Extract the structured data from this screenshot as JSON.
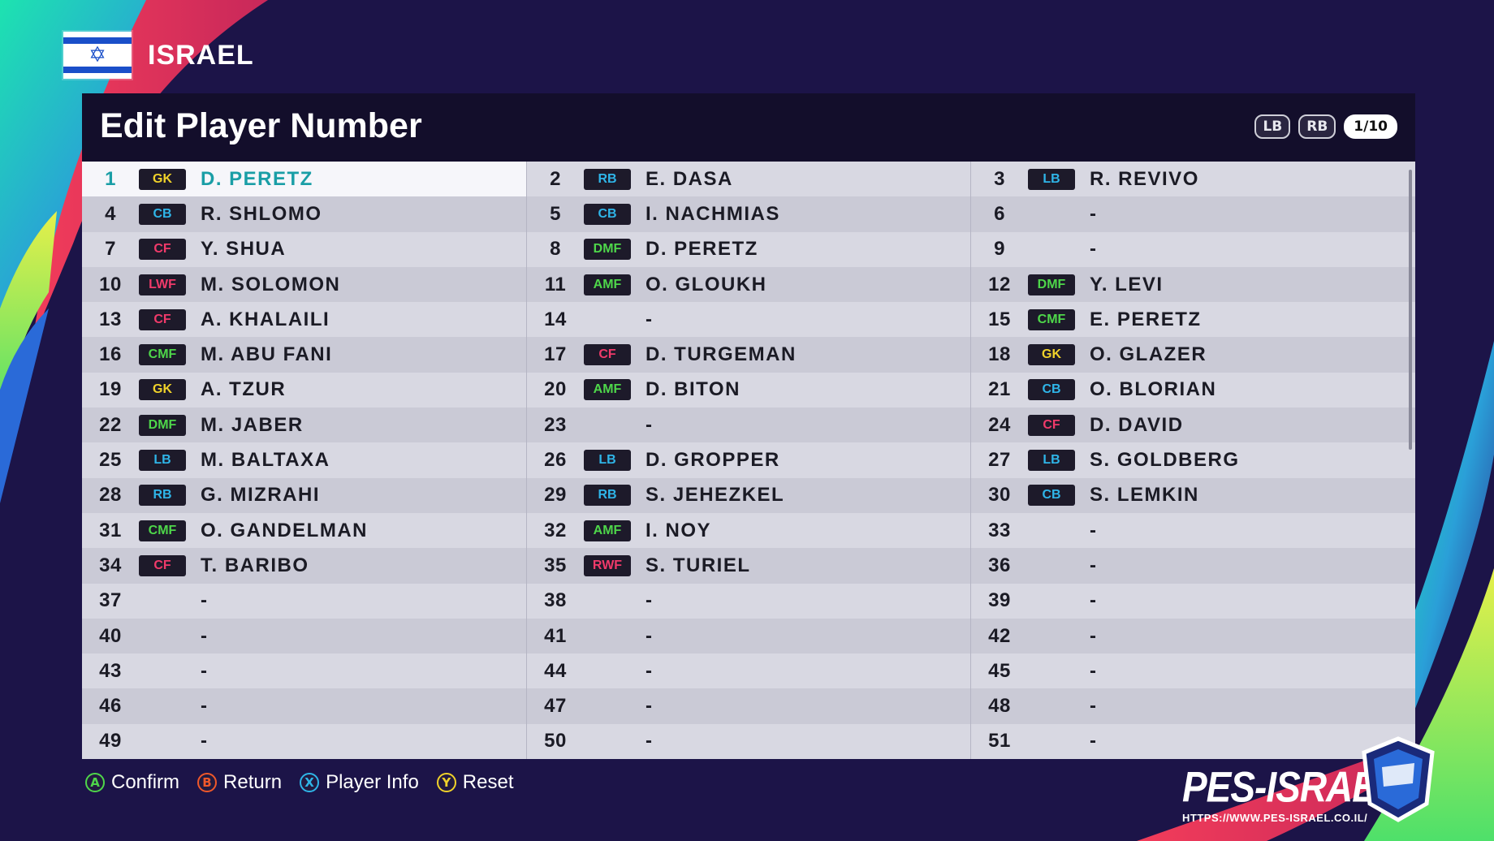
{
  "header": {
    "country": "ISRAEL"
  },
  "panel": {
    "title": "Edit Player Number",
    "paging": {
      "lb": "LB",
      "rb": "RB",
      "page": "1/10"
    }
  },
  "colors": {
    "GK": "#f0d22a",
    "CB": "#2fb5e8",
    "LB": "#2fb5e8",
    "RB": "#2fb5e8",
    "DMF": "#4ed64a",
    "CMF": "#4ed64a",
    "AMF": "#4ed64a",
    "CF": "#f03a6a",
    "LWF": "#f03a6a",
    "RWF": "#f03a6a"
  },
  "players": [
    {
      "n": "1",
      "p": "GK",
      "name": "D. PERETZ",
      "selected": true
    },
    {
      "n": "2",
      "p": "RB",
      "name": "E. DASA"
    },
    {
      "n": "3",
      "p": "LB",
      "name": "R. REVIVO"
    },
    {
      "n": "4",
      "p": "CB",
      "name": "R. SHLOMO"
    },
    {
      "n": "5",
      "p": "CB",
      "name": "I. NACHMIAS"
    },
    {
      "n": "6",
      "p": "",
      "name": "-"
    },
    {
      "n": "7",
      "p": "CF",
      "name": "Y. SHUA"
    },
    {
      "n": "8",
      "p": "DMF",
      "name": "D. PERETZ"
    },
    {
      "n": "9",
      "p": "",
      "name": "-"
    },
    {
      "n": "10",
      "p": "LWF",
      "name": "M. SOLOMON"
    },
    {
      "n": "11",
      "p": "AMF",
      "name": "O. GLOUKH"
    },
    {
      "n": "12",
      "p": "DMF",
      "name": "Y. LEVI"
    },
    {
      "n": "13",
      "p": "CF",
      "name": "A. KHALAILI"
    },
    {
      "n": "14",
      "p": "",
      "name": "-"
    },
    {
      "n": "15",
      "p": "CMF",
      "name": "E. PERETZ"
    },
    {
      "n": "16",
      "p": "CMF",
      "name": "M. ABU FANI"
    },
    {
      "n": "17",
      "p": "CF",
      "name": "D. TURGEMAN"
    },
    {
      "n": "18",
      "p": "GK",
      "name": "O. GLAZER"
    },
    {
      "n": "19",
      "p": "GK",
      "name": "A. TZUR"
    },
    {
      "n": "20",
      "p": "AMF",
      "name": "D. BITON"
    },
    {
      "n": "21",
      "p": "CB",
      "name": "O. BLORIAN"
    },
    {
      "n": "22",
      "p": "DMF",
      "name": "M. JABER"
    },
    {
      "n": "23",
      "p": "",
      "name": "-"
    },
    {
      "n": "24",
      "p": "CF",
      "name": "D. DAVID"
    },
    {
      "n": "25",
      "p": "LB",
      "name": "M. BALTAXA"
    },
    {
      "n": "26",
      "p": "LB",
      "name": "D. GROPPER"
    },
    {
      "n": "27",
      "p": "LB",
      "name": "S. GOLDBERG"
    },
    {
      "n": "28",
      "p": "RB",
      "name": "G. MIZRAHI"
    },
    {
      "n": "29",
      "p": "RB",
      "name": "S. JEHEZKEL"
    },
    {
      "n": "30",
      "p": "CB",
      "name": "S. LEMKIN"
    },
    {
      "n": "31",
      "p": "CMF",
      "name": "O. GANDELMAN"
    },
    {
      "n": "32",
      "p": "AMF",
      "name": "I. NOY"
    },
    {
      "n": "33",
      "p": "",
      "name": "-"
    },
    {
      "n": "34",
      "p": "CF",
      "name": "T. BARIBO"
    },
    {
      "n": "35",
      "p": "RWF",
      "name": "S. TURIEL"
    },
    {
      "n": "36",
      "p": "",
      "name": "-"
    },
    {
      "n": "37",
      "p": "",
      "name": "-"
    },
    {
      "n": "38",
      "p": "",
      "name": "-"
    },
    {
      "n": "39",
      "p": "",
      "name": "-"
    },
    {
      "n": "40",
      "p": "",
      "name": "-"
    },
    {
      "n": "41",
      "p": "",
      "name": "-"
    },
    {
      "n": "42",
      "p": "",
      "name": "-"
    },
    {
      "n": "43",
      "p": "",
      "name": "-"
    },
    {
      "n": "44",
      "p": "",
      "name": "-"
    },
    {
      "n": "45",
      "p": "",
      "name": "-"
    },
    {
      "n": "46",
      "p": "",
      "name": "-"
    },
    {
      "n": "47",
      "p": "",
      "name": "-"
    },
    {
      "n": "48",
      "p": "",
      "name": "-"
    },
    {
      "n": "49",
      "p": "",
      "name": "-"
    },
    {
      "n": "50",
      "p": "",
      "name": "-"
    },
    {
      "n": "51",
      "p": "",
      "name": "-"
    }
  ],
  "footer": {
    "hints": [
      {
        "key": "A",
        "label": "Confirm",
        "color": "#4ed64a"
      },
      {
        "key": "B",
        "label": "Return",
        "color": "#f0582a"
      },
      {
        "key": "X",
        "label": "Player Info",
        "color": "#2fb5e8"
      },
      {
        "key": "Y",
        "label": "Reset",
        "color": "#f0d22a"
      }
    ]
  },
  "logo": {
    "text": "PES-ISRAEL",
    "url": "HTTPS://WWW.PES-ISRAEL.CO.IL/"
  }
}
